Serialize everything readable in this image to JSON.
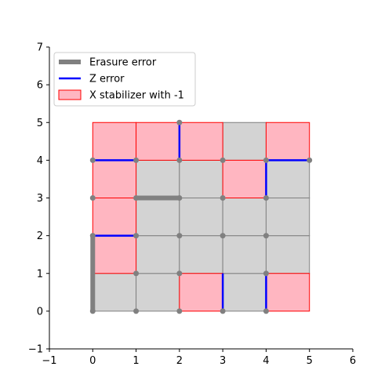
{
  "chart_data": {
    "type": "lattice",
    "title": "",
    "xlabel": "",
    "ylabel": "",
    "xlim": [
      -1,
      6
    ],
    "ylim": [
      -1,
      7
    ],
    "xticks": [
      "−1",
      "0",
      "1",
      "2",
      "3",
      "4",
      "5",
      "6"
    ],
    "yticks": [
      "−1",
      "0",
      "1",
      "2",
      "3",
      "4",
      "5",
      "6",
      "7"
    ],
    "xtick_values": [
      -1,
      0,
      1,
      2,
      3,
      4,
      5,
      6
    ],
    "ytick_values": [
      -1,
      0,
      1,
      2,
      3,
      4,
      5,
      6,
      7
    ],
    "grid_size": 5,
    "cell_color": "#d3d3d3",
    "edge_color": "#808080",
    "stabilizer_fill": "#ffb6c1",
    "stabilizer_edge": "#ff0000",
    "erasure_color": "#808080",
    "z_error_color": "#0000ff",
    "x_stabilizers_minus1": [
      [
        0,
        4
      ],
      [
        1,
        4
      ],
      [
        2,
        4
      ],
      [
        4,
        4
      ],
      [
        0,
        3
      ],
      [
        3,
        3
      ],
      [
        0,
        2
      ],
      [
        0,
        1
      ],
      [
        2,
        0
      ],
      [
        4,
        0
      ]
    ],
    "erasure_edges": [
      [
        [
          0,
          0
        ],
        [
          0,
          2
        ]
      ],
      [
        [
          1,
          3
        ],
        [
          2,
          3
        ]
      ]
    ],
    "z_error_edges": [
      [
        [
          0,
          4
        ],
        [
          1,
          4
        ]
      ],
      [
        [
          2,
          4
        ],
        [
          2,
          5
        ]
      ],
      [
        [
          4,
          3
        ],
        [
          4,
          4
        ]
      ],
      [
        [
          4,
          4
        ],
        [
          5,
          4
        ]
      ],
      [
        [
          0,
          2
        ],
        [
          1,
          2
        ]
      ],
      [
        [
          3,
          0
        ],
        [
          3,
          1
        ]
      ],
      [
        [
          4,
          0
        ],
        [
          4,
          1
        ]
      ]
    ],
    "vertices": [
      [
        0,
        0
      ],
      [
        1,
        0
      ],
      [
        2,
        0
      ],
      [
        3,
        0
      ],
      [
        4,
        0
      ],
      [
        1,
        1
      ],
      [
        2,
        1
      ],
      [
        4,
        1
      ],
      [
        0,
        2
      ],
      [
        1,
        2
      ],
      [
        2,
        2
      ],
      [
        3,
        2
      ],
      [
        4,
        2
      ],
      [
        0,
        3
      ],
      [
        1,
        3
      ],
      [
        2,
        3
      ],
      [
        3,
        3
      ],
      [
        4,
        3
      ],
      [
        0,
        4
      ],
      [
        1,
        4
      ],
      [
        2,
        4
      ],
      [
        3,
        4
      ],
      [
        4,
        4
      ],
      [
        5,
        4
      ],
      [
        2,
        5
      ]
    ],
    "legend": {
      "placement": "upper-left",
      "entries": [
        {
          "label": "Erasure error",
          "kind": "thick-line",
          "color": "#808080"
        },
        {
          "label": "Z error",
          "kind": "line",
          "color": "#0000ff"
        },
        {
          "label": "X stabilizer with -1",
          "kind": "patch",
          "color": "#ffb6c1",
          "edge": "#ff0000"
        }
      ]
    }
  }
}
